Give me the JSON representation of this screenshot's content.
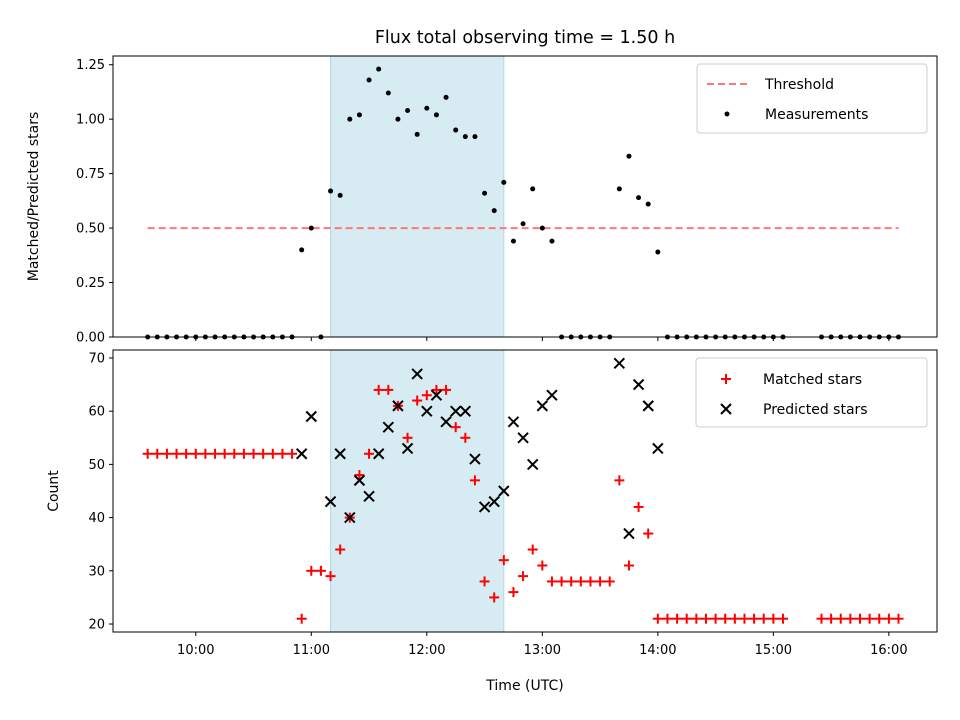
{
  "chart_data": [
    {
      "type": "scatter",
      "title": "Flux total observing time = 1.50 h",
      "xlabel": "",
      "ylabel": "Matched/Predicted stars",
      "ylim": [
        0,
        1.29
      ],
      "xlim": [
        "09:17",
        "16:25"
      ],
      "yticks": [
        {
          "v": 0,
          "label": "0.00"
        },
        {
          "v": 0.25,
          "label": "0.25"
        },
        {
          "v": 0.5,
          "label": "0.50"
        },
        {
          "v": 0.75,
          "label": "0.75"
        },
        {
          "v": 1.0,
          "label": "1.00"
        },
        {
          "v": 1.25,
          "label": "1.25"
        }
      ],
      "shaded_region": {
        "from": "11:10",
        "to": "12:40",
        "color": "#add8e6"
      },
      "legend": {
        "placement": "top-right",
        "entries": [
          "Threshold",
          "Measurements"
        ]
      },
      "threshold": {
        "name": "Threshold",
        "y": 0.5,
        "x": [
          "09:35",
          "16:05"
        ],
        "color": "#ff7777"
      },
      "series": [
        {
          "name": "Measurements",
          "color": "#000000",
          "x": [
            "09:35",
            "09:40",
            "09:45",
            "09:50",
            "09:55",
            "10:00",
            "10:05",
            "10:10",
            "10:15",
            "10:20",
            "10:25",
            "10:30",
            "10:35",
            "10:40",
            "10:45",
            "10:50",
            "10:55",
            "11:00",
            "11:05",
            "11:10",
            "11:15",
            "11:20",
            "11:25",
            "11:30",
            "11:35",
            "11:40",
            "11:45",
            "11:50",
            "11:55",
            "12:00",
            "12:05",
            "12:10",
            "12:15",
            "12:20",
            "12:25",
            "12:30",
            "12:35",
            "12:40",
            "12:45",
            "12:50",
            "12:55",
            "13:00",
            "13:05",
            "13:10",
            "13:15",
            "13:20",
            "13:25",
            "13:30",
            "13:35",
            "13:40",
            "13:45",
            "13:50",
            "13:55",
            "14:00",
            "14:05",
            "14:10",
            "14:15",
            "14:20",
            "14:25",
            "14:30",
            "14:35",
            "14:40",
            "14:45",
            "14:50",
            "14:55",
            "15:00",
            "15:05",
            "15:25",
            "15:30",
            "15:35",
            "15:40",
            "15:45",
            "15:50",
            "15:55",
            "16:00",
            "16:05"
          ],
          "y": [
            0,
            0,
            0,
            0,
            0,
            0,
            0,
            0,
            0,
            0,
            0,
            0,
            0,
            0,
            0,
            0,
            0.4,
            0.5,
            0,
            0.67,
            0.65,
            1.0,
            1.02,
            1.18,
            1.23,
            1.12,
            1.0,
            1.04,
            0.93,
            1.05,
            1.02,
            1.1,
            0.95,
            0.92,
            0.92,
            0.66,
            0.58,
            0.71,
            0.44,
            0.52,
            0.68,
            0.5,
            0.44,
            0,
            0,
            0,
            0,
            0,
            0,
            0.68,
            0.83,
            0.64,
            0.61,
            0.39,
            0,
            0,
            0,
            0,
            0,
            0,
            0,
            0,
            0,
            0,
            0,
            0,
            0,
            0,
            0,
            0,
            0,
            0,
            0,
            0,
            0,
            0
          ]
        }
      ]
    },
    {
      "type": "scatter",
      "title": "",
      "xlabel": "Time (UTC)",
      "ylabel": "Count",
      "ylim": [
        18.5,
        71.5
      ],
      "xlim": [
        "09:17",
        "16:25"
      ],
      "yticks": [
        {
          "v": 20,
          "label": "20"
        },
        {
          "v": 30,
          "label": "30"
        },
        {
          "v": 40,
          "label": "40"
        },
        {
          "v": 50,
          "label": "50"
        },
        {
          "v": 60,
          "label": "60"
        },
        {
          "v": 70,
          "label": "70"
        }
      ],
      "xticks": [
        "10:00",
        "11:00",
        "12:00",
        "13:00",
        "14:00",
        "15:00",
        "16:00"
      ],
      "shaded_region": {
        "from": "11:10",
        "to": "12:40",
        "color": "#add8e6"
      },
      "legend": {
        "placement": "top-right",
        "entries": [
          "Matched stars",
          "Predicted stars"
        ]
      },
      "series": [
        {
          "name": "Matched stars",
          "marker": "+",
          "color": "#ff0000",
          "x": [
            "09:35",
            "09:40",
            "09:45",
            "09:50",
            "09:55",
            "10:00",
            "10:05",
            "10:10",
            "10:15",
            "10:20",
            "10:25",
            "10:30",
            "10:35",
            "10:40",
            "10:45",
            "10:50",
            "10:55",
            "11:00",
            "11:05",
            "11:10",
            "11:15",
            "11:20",
            "11:25",
            "11:30",
            "11:35",
            "11:40",
            "11:45",
            "11:50",
            "11:55",
            "12:00",
            "12:05",
            "12:10",
            "12:15",
            "12:20",
            "12:25",
            "12:30",
            "12:35",
            "12:40",
            "12:45",
            "12:50",
            "12:55",
            "13:00",
            "13:05",
            "13:10",
            "13:15",
            "13:20",
            "13:25",
            "13:30",
            "13:35",
            "13:40",
            "13:45",
            "13:50",
            "13:55",
            "14:00",
            "14:05",
            "14:10",
            "14:15",
            "14:20",
            "14:25",
            "14:30",
            "14:35",
            "14:40",
            "14:45",
            "14:50",
            "14:55",
            "15:00",
            "15:05",
            "15:25",
            "15:30",
            "15:35",
            "15:40",
            "15:45",
            "15:50",
            "15:55",
            "16:00",
            "16:05"
          ],
          "y": [
            52,
            52,
            52,
            52,
            52,
            52,
            52,
            52,
            52,
            52,
            52,
            52,
            52,
            52,
            52,
            52,
            21,
            30,
            30,
            29,
            34,
            40,
            48,
            52,
            64,
            64,
            61,
            55,
            62,
            63,
            64,
            64,
            57,
            55,
            47,
            28,
            25,
            32,
            26,
            29,
            34,
            31,
            28,
            28,
            28,
            28,
            28,
            28,
            28,
            47,
            31,
            42,
            37,
            21,
            21,
            21,
            21,
            21,
            21,
            21,
            21,
            21,
            21,
            21,
            21,
            21,
            21,
            21,
            21,
            21,
            21,
            21,
            21,
            21,
            21,
            21
          ]
        },
        {
          "name": "Predicted stars",
          "marker": "x",
          "color": "#000000",
          "x": [
            "10:55",
            "11:00",
            "11:10",
            "11:15",
            "11:20",
            "11:25",
            "11:30",
            "11:35",
            "11:40",
            "11:45",
            "11:50",
            "11:55",
            "12:00",
            "12:05",
            "12:10",
            "12:15",
            "12:20",
            "12:25",
            "12:30",
            "12:35",
            "12:40",
            "12:45",
            "12:50",
            "12:55",
            "13:00",
            "13:05",
            "13:40",
            "13:45",
            "13:50",
            "13:55",
            "14:00"
          ],
          "y": [
            52,
            59,
            43,
            52,
            40,
            47,
            44,
            52,
            57,
            61,
            53,
            67,
            60,
            63,
            58,
            60,
            60,
            51,
            42,
            43,
            45,
            58,
            55,
            50,
            61,
            63,
            69,
            37,
            65,
            61,
            53
          ]
        }
      ]
    }
  ]
}
